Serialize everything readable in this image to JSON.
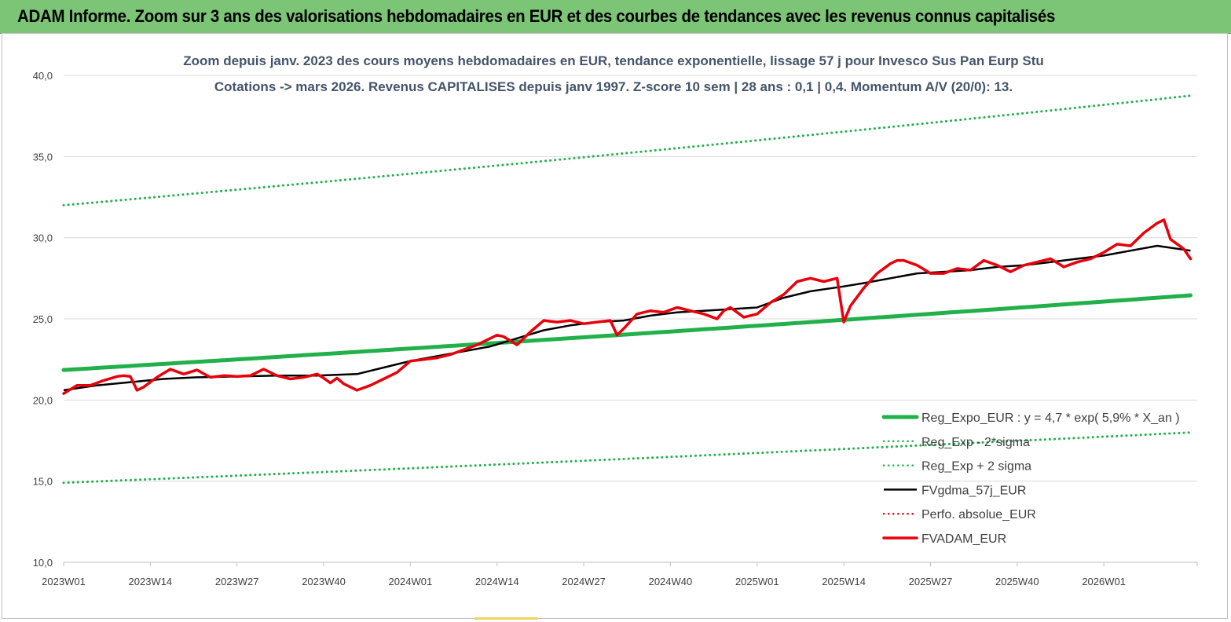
{
  "header": {
    "title": "ADAM Informe. Zoom sur 3 ans des valorisations hebdomadaires en EUR et des courbes de tendances avec les revenus connus capitalisés",
    "background_color": "#7cc576"
  },
  "chart_data": {
    "type": "line",
    "title_line1": "Zoom depuis janv. 2023 des cours moyens hebdomadaires en EUR, tendance exponentielle, lissage 57 j pour Invesco Sus Pan Eurp Stu",
    "title_line2": "Cotations -> mars 2026. Revenus CAPITALISES depuis janv 1997. Z-score 10 sem | 28 ans : 0,1 | 0,4. Momentum A/V (20/0): 13.",
    "ylim": [
      10,
      40
    ],
    "yticks": [
      "10,0",
      "15,0",
      "20,0",
      "25,0",
      "30,0",
      "35,0",
      "40,0"
    ],
    "ytick_values": [
      10,
      15,
      20,
      25,
      30,
      35,
      40
    ],
    "x_tick_labels": [
      "2023W01",
      "2023W14",
      "2023W27",
      "2023W40",
      "2024W01",
      "2024W14",
      "2024W27",
      "2024W40",
      "2025W01",
      "2025W14",
      "2025W27",
      "2025W40",
      "2026W01"
    ],
    "x_tick_weeks": [
      0,
      13,
      26,
      39,
      52,
      65,
      78,
      91,
      104,
      117,
      130,
      143,
      156
    ],
    "xlim_weeks": [
      0,
      170
    ],
    "grid": "horizontal",
    "legend_position": "bottom-right",
    "series": [
      {
        "name": "Reg_Expo_EUR : y = 4,7 * exp( 5,9% *  X_an )",
        "color": "#22b04a",
        "style": "solid-thick",
        "x_weeks": [
          0,
          169
        ],
        "values": [
          21.85,
          26.45
        ]
      },
      {
        "name": "Reg_Exp - 2*sigma",
        "color": "#22b04a",
        "style": "dotted",
        "x_weeks": [
          0,
          169
        ],
        "values": [
          14.9,
          18.0
        ]
      },
      {
        "name": "Reg_Exp + 2 sigma",
        "color": "#22b04a",
        "style": "dotted",
        "x_weeks": [
          0,
          169
        ],
        "values": [
          32.0,
          38.75
        ]
      },
      {
        "name": "FVgdma_57j_EUR",
        "color": "#000000",
        "style": "solid",
        "x_weeks": [
          0,
          5,
          10,
          15,
          20,
          26,
          32,
          38,
          44,
          48,
          52,
          56,
          60,
          64,
          68,
          72,
          76,
          80,
          84,
          88,
          92,
          96,
          100,
          104,
          108,
          112,
          117,
          120,
          124,
          128,
          132,
          136,
          140,
          144,
          148,
          152,
          156,
          160,
          164,
          169
        ],
        "values": [
          20.6,
          20.9,
          21.1,
          21.3,
          21.4,
          21.45,
          21.5,
          21.5,
          21.6,
          22.0,
          22.4,
          22.7,
          23.0,
          23.3,
          23.8,
          24.3,
          24.6,
          24.8,
          24.9,
          25.2,
          25.4,
          25.5,
          25.6,
          25.7,
          26.3,
          26.7,
          27.0,
          27.2,
          27.5,
          27.8,
          27.9,
          28.0,
          28.2,
          28.3,
          28.5,
          28.7,
          28.9,
          29.2,
          29.5,
          29.2
        ]
      },
      {
        "name": "Perfo. absolue_EUR",
        "color": "#e00000",
        "style": "dotted",
        "x_weeks": [],
        "values": []
      },
      {
        "name": "FVADAM_EUR",
        "color": "#e8000b",
        "style": "solid-thick",
        "x_weeks": [
          0,
          2,
          4,
          6,
          8,
          9,
          10,
          11,
          12,
          14,
          16,
          18,
          20,
          22,
          24,
          26,
          28,
          30,
          32,
          34,
          36,
          38,
          39,
          40,
          41,
          42,
          44,
          46,
          48,
          50,
          52,
          54,
          56,
          58,
          60,
          62,
          64,
          65,
          66,
          68,
          70,
          72,
          74,
          76,
          78,
          80,
          82,
          83,
          84,
          86,
          88,
          90,
          92,
          94,
          96,
          98,
          99,
          100,
          102,
          104,
          106,
          108,
          110,
          112,
          114,
          116,
          117,
          118,
          120,
          122,
          124,
          125,
          126,
          128,
          130,
          132,
          134,
          136,
          138,
          140,
          142,
          144,
          146,
          148,
          150,
          152,
          154,
          156,
          158,
          160,
          162,
          164,
          165,
          166,
          168,
          169
        ],
        "values": [
          20.4,
          20.9,
          20.9,
          21.2,
          21.45,
          21.5,
          21.45,
          20.6,
          20.8,
          21.4,
          21.9,
          21.6,
          21.85,
          21.4,
          21.5,
          21.45,
          21.5,
          21.9,
          21.5,
          21.3,
          21.4,
          21.6,
          21.35,
          21.05,
          21.35,
          21.0,
          20.6,
          20.9,
          21.3,
          21.7,
          22.4,
          22.5,
          22.6,
          22.8,
          23.1,
          23.4,
          23.8,
          24.0,
          23.9,
          23.4,
          24.2,
          24.9,
          24.8,
          24.9,
          24.7,
          24.8,
          24.9,
          24.0,
          24.4,
          25.3,
          25.5,
          25.4,
          25.7,
          25.5,
          25.3,
          25.0,
          25.5,
          25.7,
          25.1,
          25.3,
          26.0,
          26.5,
          27.3,
          27.5,
          27.3,
          27.5,
          24.8,
          25.8,
          26.9,
          27.8,
          28.4,
          28.6,
          28.6,
          28.3,
          27.8,
          27.8,
          28.1,
          28.0,
          28.6,
          28.3,
          27.9,
          28.3,
          28.5,
          28.7,
          28.2,
          28.5,
          28.7,
          29.1,
          29.6,
          29.5,
          30.3,
          30.9,
          31.1,
          29.9,
          29.3,
          28.7
        ]
      }
    ]
  }
}
